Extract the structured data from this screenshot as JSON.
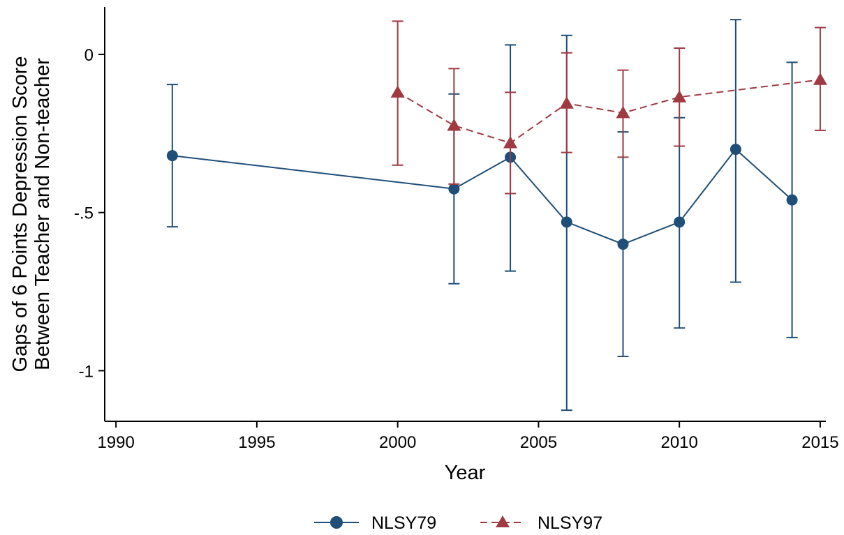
{
  "chart_data": {
    "type": "line",
    "xlabel": "Year",
    "ylabel_lines": [
      "Gaps of 6 Points Depression Score",
      "Between Teacher and Non-teacher"
    ],
    "xlim": [
      1989.6,
      2015.2
    ],
    "ylim": [
      -1.16,
      0.15
    ],
    "x_ticks": [
      1990,
      1995,
      2000,
      2005,
      2010,
      2015
    ],
    "x_tick_labels": [
      "1990",
      "1995",
      "2000",
      "2005",
      "2010",
      "2015"
    ],
    "y_ticks": [
      0,
      -0.5,
      -1
    ],
    "y_tick_labels": [
      "0",
      "-.5",
      "-1"
    ],
    "grid": false,
    "legend_position": "bottom",
    "series": [
      {
        "name": "NLSY79",
        "color": "#1f4e79",
        "marker": "circle",
        "line_style": "solid",
        "points": [
          {
            "x": 1992,
            "y": -0.32,
            "lo": -0.545,
            "hi": -0.095
          },
          {
            "x": 2002,
            "y": -0.425,
            "lo": -0.725,
            "hi": -0.125
          },
          {
            "x": 2004,
            "y": -0.325,
            "lo": -0.685,
            "hi": 0.03
          },
          {
            "x": 2006,
            "y": -0.53,
            "lo": -1.125,
            "hi": 0.06
          },
          {
            "x": 2008,
            "y": -0.6,
            "lo": -0.955,
            "hi": -0.245
          },
          {
            "x": 2010,
            "y": -0.53,
            "lo": -0.865,
            "hi": -0.2
          },
          {
            "x": 2012,
            "y": -0.3,
            "lo": -0.72,
            "hi": 0.11
          },
          {
            "x": 2014,
            "y": -0.46,
            "lo": -0.895,
            "hi": -0.025
          }
        ]
      },
      {
        "name": "NLSY97",
        "color": "#a03a42",
        "marker": "triangle",
        "line_style": "dashed",
        "points": [
          {
            "x": 2000,
            "y": -0.12,
            "lo": -0.35,
            "hi": 0.105
          },
          {
            "x": 2002,
            "y": -0.225,
            "lo": -0.41,
            "hi": -0.045
          },
          {
            "x": 2004,
            "y": -0.28,
            "lo": -0.44,
            "hi": -0.12
          },
          {
            "x": 2006,
            "y": -0.155,
            "lo": -0.31,
            "hi": 0.005
          },
          {
            "x": 2008,
            "y": -0.185,
            "lo": -0.325,
            "hi": -0.05
          },
          {
            "x": 2010,
            "y": -0.135,
            "lo": -0.29,
            "hi": 0.02
          },
          {
            "x": 2015,
            "y": -0.08,
            "lo": -0.24,
            "hi": 0.085
          }
        ]
      }
    ]
  }
}
